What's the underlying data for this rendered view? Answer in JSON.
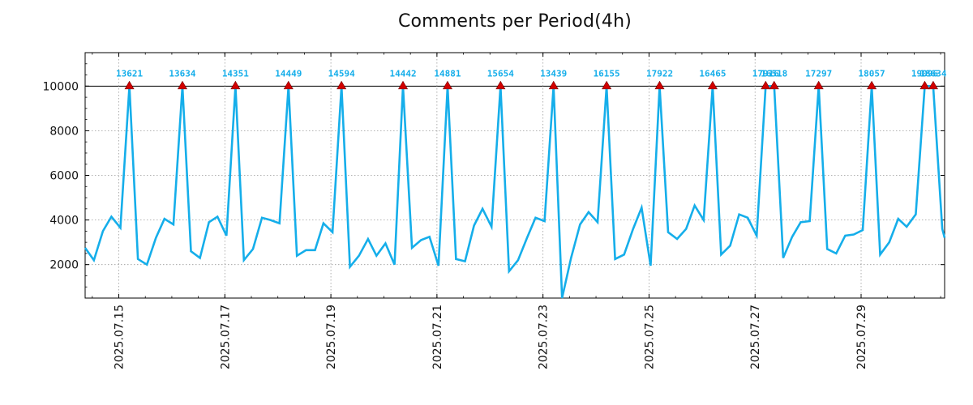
{
  "chart_data": {
    "type": "line",
    "title": "Comments per Period(4h)",
    "xlabel": "",
    "ylabel": "",
    "ylim": [
      500,
      11500
    ],
    "clip_threshold": 10000,
    "y_ticks": [
      2000,
      4000,
      6000,
      8000,
      10000
    ],
    "x_ticks": [
      {
        "day": 1,
        "label": "2025.07.15"
      },
      {
        "day": 3,
        "label": "2025.07.17"
      },
      {
        "day": 5,
        "label": "2025.07.19"
      },
      {
        "day": 7,
        "label": "2025.07.21"
      },
      {
        "day": 9,
        "label": "2025.07.23"
      },
      {
        "day": 11,
        "label": "2025.07.25"
      },
      {
        "day": 13,
        "label": "2025.07.27"
      },
      {
        "day": 15,
        "label": "2025.07.29"
      }
    ],
    "x_range_days": [
      0.365,
      16.575
    ],
    "x_unit": "days since 2025.07.14 00:00",
    "line_color": "#15aeea",
    "marker_color": "#d10000",
    "series": [
      {
        "name": "Comments",
        "points": [
          [
            0.365,
            2750
          ],
          [
            0.53,
            2200
          ],
          [
            0.7,
            3500
          ],
          [
            0.86,
            4150
          ],
          [
            1.03,
            3650
          ],
          [
            1.2,
            13621
          ],
          [
            1.36,
            2250
          ],
          [
            1.53,
            2000
          ],
          [
            1.7,
            3200
          ],
          [
            1.86,
            4050
          ],
          [
            2.03,
            3800
          ],
          [
            2.2,
            13634
          ],
          [
            2.36,
            2600
          ],
          [
            2.53,
            2300
          ],
          [
            2.7,
            3900
          ],
          [
            2.86,
            4150
          ],
          [
            3.03,
            3300
          ],
          [
            3.2,
            14351
          ],
          [
            3.36,
            2200
          ],
          [
            3.53,
            2700
          ],
          [
            3.7,
            4100
          ],
          [
            3.86,
            4000
          ],
          [
            4.03,
            3850
          ],
          [
            4.2,
            14449
          ],
          [
            4.36,
            2400
          ],
          [
            4.53,
            2650
          ],
          [
            4.7,
            2650
          ],
          [
            4.86,
            3850
          ],
          [
            5.03,
            3450
          ],
          [
            5.2,
            14594
          ],
          [
            5.36,
            1900
          ],
          [
            5.53,
            2400
          ],
          [
            5.7,
            3150
          ],
          [
            5.86,
            2400
          ],
          [
            6.03,
            2950
          ],
          [
            6.2,
            2000
          ],
          [
            6.36,
            14442
          ],
          [
            6.53,
            2750
          ],
          [
            6.7,
            3100
          ],
          [
            6.86,
            3250
          ],
          [
            7.03,
            1950
          ],
          [
            7.2,
            14881
          ],
          [
            7.36,
            2250
          ],
          [
            7.53,
            2150
          ],
          [
            7.7,
            3750
          ],
          [
            7.86,
            4500
          ],
          [
            8.03,
            3700
          ],
          [
            8.2,
            15654
          ],
          [
            8.36,
            1700
          ],
          [
            8.53,
            2200
          ],
          [
            8.7,
            3200
          ],
          [
            8.86,
            4100
          ],
          [
            9.03,
            3950
          ],
          [
            9.2,
            13439
          ],
          [
            9.36,
            500
          ],
          [
            9.53,
            2300
          ],
          [
            9.7,
            3800
          ],
          [
            9.86,
            4350
          ],
          [
            10.03,
            3900
          ],
          [
            10.2,
            16155
          ],
          [
            10.36,
            2250
          ],
          [
            10.53,
            2450
          ],
          [
            10.7,
            3600
          ],
          [
            10.86,
            4550
          ],
          [
            11.03,
            1950
          ],
          [
            11.2,
            17922
          ],
          [
            11.36,
            3450
          ],
          [
            11.53,
            3150
          ],
          [
            11.7,
            3600
          ],
          [
            11.86,
            4650
          ],
          [
            12.03,
            4000
          ],
          [
            12.2,
            16465
          ],
          [
            12.36,
            2450
          ],
          [
            12.53,
            2850
          ],
          [
            12.7,
            4250
          ],
          [
            12.86,
            4100
          ],
          [
            13.03,
            3300
          ],
          [
            13.2,
            17916
          ],
          [
            13.36,
            16518
          ],
          [
            13.53,
            2300
          ],
          [
            13.7,
            3250
          ],
          [
            13.86,
            3900
          ],
          [
            14.03,
            3950
          ],
          [
            14.2,
            17297
          ],
          [
            14.36,
            2700
          ],
          [
            14.53,
            2500
          ],
          [
            14.7,
            3300
          ],
          [
            14.86,
            3350
          ],
          [
            15.03,
            3550
          ],
          [
            15.2,
            18057
          ],
          [
            15.36,
            2450
          ],
          [
            15.53,
            3000
          ],
          [
            15.7,
            4050
          ],
          [
            15.86,
            3700
          ],
          [
            16.03,
            4250
          ],
          [
            16.2,
            19096
          ],
          [
            16.36,
            18634
          ],
          [
            16.53,
            3600
          ],
          [
            16.575,
            3200
          ]
        ]
      }
    ],
    "peaks": [
      {
        "day": 1.2,
        "value": 13621,
        "label": "13621"
      },
      {
        "day": 2.2,
        "value": 13634,
        "label": "13634"
      },
      {
        "day": 3.2,
        "value": 14351,
        "label": "14351"
      },
      {
        "day": 4.2,
        "value": 14449,
        "label": "14449"
      },
      {
        "day": 5.2,
        "value": 14594,
        "label": "14594"
      },
      {
        "day": 6.36,
        "value": 14442,
        "label": "14442"
      },
      {
        "day": 7.2,
        "value": 14881,
        "label": "14881"
      },
      {
        "day": 8.2,
        "value": 15654,
        "label": "15654"
      },
      {
        "day": 9.2,
        "value": 13439,
        "label": "13439"
      },
      {
        "day": 10.2,
        "value": 16155,
        "label": "16155"
      },
      {
        "day": 11.2,
        "value": 17922,
        "label": "17922"
      },
      {
        "day": 12.2,
        "value": 16465,
        "label": "16465"
      },
      {
        "day": 13.2,
        "value": 17916,
        "label": "17916"
      },
      {
        "day": 13.36,
        "value": 16518,
        "label": "16518"
      },
      {
        "day": 14.2,
        "value": 17297,
        "label": "17297"
      },
      {
        "day": 15.2,
        "value": 18057,
        "label": "18057"
      },
      {
        "day": 16.2,
        "value": 19096,
        "label": "19096"
      },
      {
        "day": 16.36,
        "value": 18634,
        "label": "18634"
      }
    ]
  }
}
